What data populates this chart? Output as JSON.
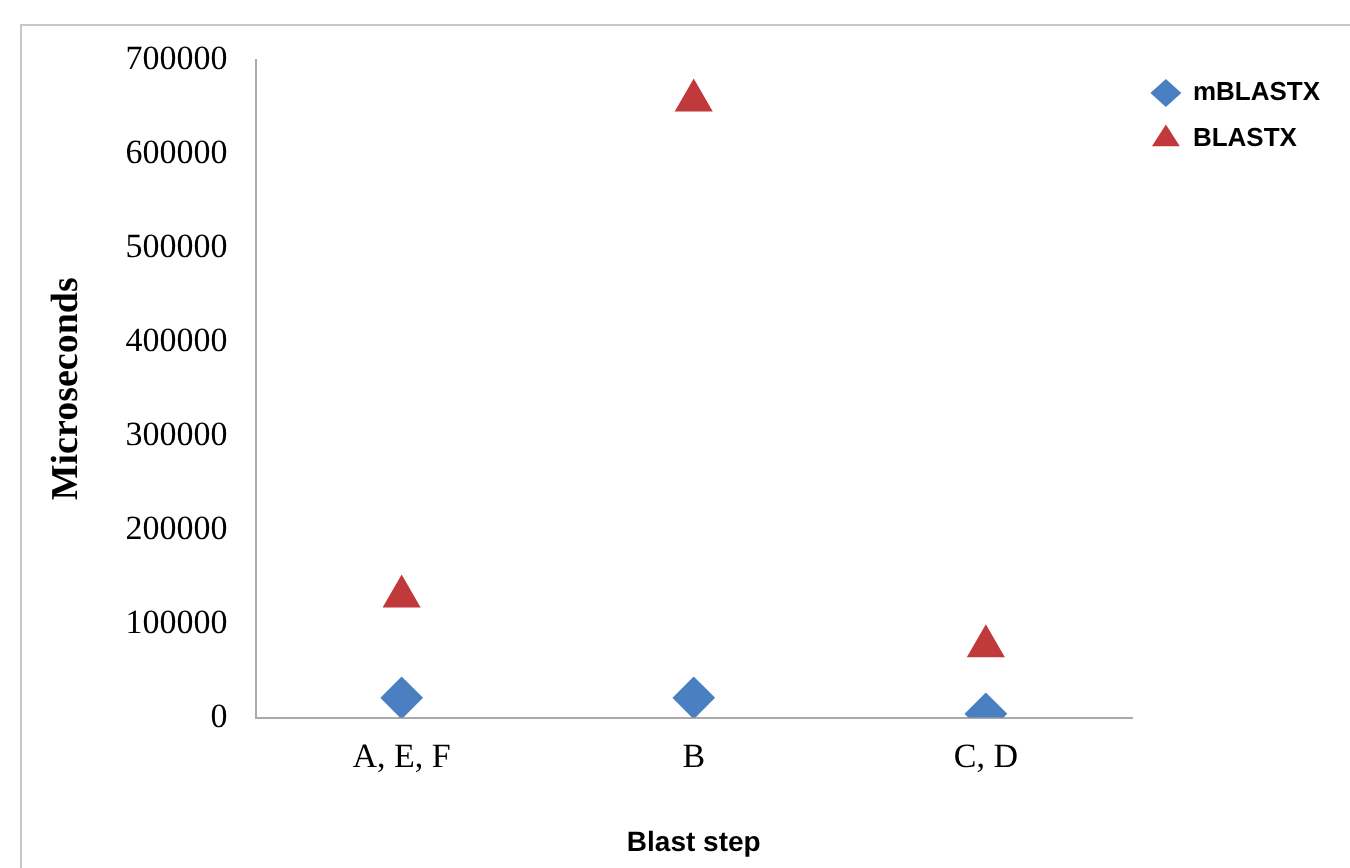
{
  "chart_data": {
    "type": "scatter",
    "xlabel": "Blast step",
    "ylabel": "Microseconds",
    "categories": [
      "A, E, F",
      "B",
      "C, D"
    ],
    "series": [
      {
        "name": "mBLASTX",
        "color": "#4a7fc1",
        "marker": "diamond",
        "values": [
          21000,
          21000,
          4000
        ]
      },
      {
        "name": "BLASTX",
        "color": "#c0393b",
        "marker": "triangle",
        "values": [
          129000,
          657000,
          76000
        ]
      }
    ],
    "ylim": [
      0,
      700000
    ],
    "yticks": [
      0,
      100000,
      200000,
      300000,
      400000,
      500000,
      600000,
      700000
    ],
    "grid": false,
    "legend": "top right"
  }
}
